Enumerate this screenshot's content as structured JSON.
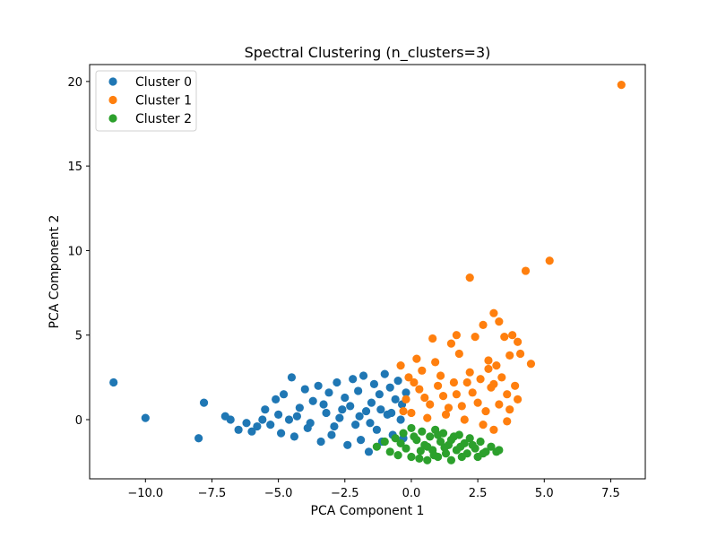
{
  "chart_data": {
    "type": "scatter",
    "title": "Spectral Clustering (n_clusters=3)",
    "xlabel": "PCA Component 1",
    "ylabel": "PCA Component 2",
    "xlim": [
      -12.1,
      8.8
    ],
    "ylim": [
      -3.5,
      21.0
    ],
    "xticks": [
      -10.0,
      -7.5,
      -5.0,
      -2.5,
      0.0,
      2.5,
      5.0,
      7.5
    ],
    "xtick_labels": [
      "−10.0",
      "−7.5",
      "−5.0",
      "−2.5",
      "0.0",
      "2.5",
      "5.0",
      "7.5"
    ],
    "yticks": [
      0,
      5,
      10,
      15,
      20
    ],
    "ytick_labels": [
      "0",
      "5",
      "10",
      "15",
      "20"
    ],
    "grid": false,
    "legend": "top-left",
    "series": [
      {
        "name": "Cluster 0",
        "color": "#1f77b4",
        "points": [
          [
            -11.2,
            2.2
          ],
          [
            -10.0,
            0.1
          ],
          [
            -7.8,
            1.0
          ],
          [
            -8.0,
            -1.1
          ],
          [
            -7.0,
            0.2
          ],
          [
            -6.8,
            0.0
          ],
          [
            -6.5,
            -0.6
          ],
          [
            -6.2,
            -0.2
          ],
          [
            -6.0,
            -0.7
          ],
          [
            -5.8,
            -0.4
          ],
          [
            -5.6,
            0.0
          ],
          [
            -5.5,
            0.6
          ],
          [
            -5.3,
            -0.3
          ],
          [
            -5.1,
            1.2
          ],
          [
            -5.0,
            0.3
          ],
          [
            -4.9,
            -0.8
          ],
          [
            -4.8,
            1.5
          ],
          [
            -4.6,
            0.0
          ],
          [
            -4.5,
            2.5
          ],
          [
            -4.4,
            -1.0
          ],
          [
            -4.2,
            0.7
          ],
          [
            -4.0,
            1.8
          ],
          [
            -3.9,
            -0.5
          ],
          [
            -3.7,
            1.1
          ],
          [
            -3.5,
            2.0
          ],
          [
            -3.4,
            -1.3
          ],
          [
            -3.2,
            0.4
          ],
          [
            -3.1,
            1.6
          ],
          [
            -3.0,
            -0.9
          ],
          [
            -2.8,
            2.2
          ],
          [
            -2.7,
            0.1
          ],
          [
            -2.5,
            1.3
          ],
          [
            -2.4,
            -1.5
          ],
          [
            -2.3,
            0.8
          ],
          [
            -2.2,
            2.4
          ],
          [
            -2.1,
            -0.3
          ],
          [
            -2.0,
            1.7
          ],
          [
            -1.9,
            -1.2
          ],
          [
            -1.8,
            2.6
          ],
          [
            -1.7,
            0.5
          ],
          [
            -1.6,
            -1.9
          ],
          [
            -1.5,
            1.0
          ],
          [
            -1.4,
            2.1
          ],
          [
            -1.3,
            -0.6
          ],
          [
            -1.2,
            1.5
          ],
          [
            -1.1,
            -1.3
          ],
          [
            -1.0,
            2.7
          ],
          [
            -0.9,
            0.3
          ],
          [
            -0.8,
            1.9
          ],
          [
            -0.7,
            -0.9
          ],
          [
            -0.6,
            1.2
          ],
          [
            -0.5,
            2.3
          ],
          [
            -0.4,
            0.0
          ],
          [
            -0.3,
            -1.1
          ],
          [
            -0.2,
            1.6
          ],
          [
            -4.3,
            0.2
          ],
          [
            -3.8,
            -0.2
          ],
          [
            -3.3,
            0.9
          ],
          [
            -2.9,
            -0.4
          ],
          [
            -2.6,
            0.6
          ],
          [
            -1.95,
            0.2
          ],
          [
            -1.55,
            -0.2
          ],
          [
            -1.15,
            0.6
          ],
          [
            -0.75,
            0.4
          ],
          [
            -0.35,
            0.9
          ]
        ]
      },
      {
        "name": "Cluster 1",
        "color": "#ff7f0e",
        "points": [
          [
            7.9,
            19.8
          ],
          [
            5.2,
            9.4
          ],
          [
            4.3,
            8.8
          ],
          [
            2.2,
            8.4
          ],
          [
            3.1,
            6.3
          ],
          [
            3.3,
            5.8
          ],
          [
            2.7,
            5.6
          ],
          [
            3.8,
            5.0
          ],
          [
            4.0,
            4.6
          ],
          [
            3.5,
            4.9
          ],
          [
            1.7,
            5.0
          ],
          [
            2.4,
            4.9
          ],
          [
            0.8,
            4.8
          ],
          [
            1.5,
            4.5
          ],
          [
            4.5,
            3.3
          ],
          [
            4.1,
            3.9
          ],
          [
            3.7,
            3.8
          ],
          [
            0.2,
            3.6
          ],
          [
            0.9,
            3.4
          ],
          [
            1.8,
            3.9
          ],
          [
            2.9,
            3.5
          ],
          [
            3.2,
            3.2
          ],
          [
            3.9,
            2.0
          ],
          [
            4.0,
            1.2
          ],
          [
            -0.4,
            3.2
          ],
          [
            -0.1,
            2.5
          ],
          [
            0.4,
            2.9
          ],
          [
            1.1,
            2.6
          ],
          [
            1.6,
            2.2
          ],
          [
            2.2,
            2.8
          ],
          [
            2.6,
            2.4
          ],
          [
            3.0,
            1.9
          ],
          [
            3.4,
            2.5
          ],
          [
            3.6,
            1.5
          ],
          [
            -0.2,
            1.2
          ],
          [
            0.3,
            1.8
          ],
          [
            0.7,
            0.9
          ],
          [
            1.2,
            1.4
          ],
          [
            1.9,
            0.8
          ],
          [
            2.3,
            1.6
          ],
          [
            2.8,
            0.5
          ],
          [
            3.3,
            0.9
          ],
          [
            3.7,
            0.6
          ],
          [
            0.0,
            0.4
          ],
          [
            0.6,
            0.1
          ],
          [
            1.3,
            0.3
          ],
          [
            2.0,
            0.0
          ],
          [
            2.7,
            -0.3
          ],
          [
            3.1,
            -0.6
          ],
          [
            3.6,
            -0.1
          ],
          [
            1.0,
            2.0
          ],
          [
            1.7,
            1.5
          ],
          [
            2.5,
            1.0
          ],
          [
            0.5,
            1.3
          ],
          [
            1.4,
            0.7
          ],
          [
            2.1,
            2.2
          ],
          [
            -0.3,
            0.5
          ],
          [
            0.1,
            2.2
          ],
          [
            2.9,
            3.0
          ],
          [
            3.1,
            2.1
          ]
        ]
      },
      {
        "name": "Cluster 2",
        "color": "#2ca02c",
        "points": [
          [
            -1.3,
            -1.6
          ],
          [
            -1.0,
            -1.3
          ],
          [
            -0.8,
            -1.9
          ],
          [
            -0.6,
            -1.1
          ],
          [
            -0.5,
            -2.1
          ],
          [
            -0.3,
            -0.8
          ],
          [
            -0.2,
            -1.7
          ],
          [
            0.0,
            -0.5
          ],
          [
            0.0,
            -2.2
          ],
          [
            0.2,
            -1.2
          ],
          [
            0.3,
            -2.3
          ],
          [
            0.4,
            -0.7
          ],
          [
            0.5,
            -1.5
          ],
          [
            0.6,
            -2.4
          ],
          [
            0.7,
            -1.0
          ],
          [
            0.8,
            -1.8
          ],
          [
            0.9,
            -0.6
          ],
          [
            1.0,
            -2.2
          ],
          [
            1.1,
            -1.3
          ],
          [
            1.2,
            -0.8
          ],
          [
            1.3,
            -2.0
          ],
          [
            1.4,
            -1.5
          ],
          [
            1.5,
            -2.4
          ],
          [
            1.6,
            -1.0
          ],
          [
            1.7,
            -1.8
          ],
          [
            1.8,
            -0.9
          ],
          [
            1.9,
            -2.2
          ],
          [
            2.0,
            -1.4
          ],
          [
            2.1,
            -2.0
          ],
          [
            2.2,
            -1.1
          ],
          [
            2.4,
            -1.7
          ],
          [
            2.5,
            -2.2
          ],
          [
            2.6,
            -1.3
          ],
          [
            2.8,
            -1.9
          ],
          [
            3.0,
            -1.6
          ],
          [
            3.2,
            -1.9
          ],
          [
            3.3,
            -1.8
          ],
          [
            -0.4,
            -1.4
          ],
          [
            0.1,
            -1.0
          ],
          [
            0.6,
            -1.6
          ],
          [
            1.0,
            -0.9
          ],
          [
            1.5,
            -1.2
          ],
          [
            2.3,
            -1.5
          ],
          [
            2.7,
            -2.0
          ],
          [
            0.35,
            -1.85
          ],
          [
            1.25,
            -1.65
          ],
          [
            0.85,
            -2.1
          ],
          [
            1.85,
            -1.6
          ]
        ]
      }
    ]
  }
}
